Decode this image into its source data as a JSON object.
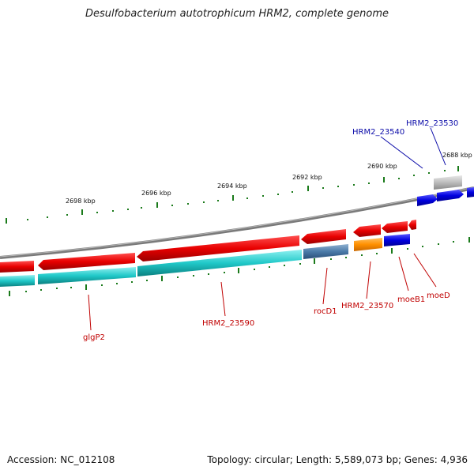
{
  "title": "Desulfobacterium autotrophicum HRM2, complete genome",
  "footer": {
    "accession": "Accession: NC_012108",
    "summary": "Topology: circular; Length: 5,589,073 bp; Genes: 4,936"
  },
  "colors": {
    "forward_strand": "#e80000",
    "reverse_strand": "#18c8c8",
    "backbone": "#808080",
    "ticks": "#1a7a1a",
    "gene_label_red": "#c00000",
    "gene_label_blue": "#0a0aa8"
  },
  "scale_labels": [
    "2698 kbp",
    "2696 kbp",
    "2694 kbp",
    "2692 kbp",
    "2690 kbp",
    "2688 kbp"
  ],
  "gene_labels_below": [
    "glgP2",
    "HRM2_23590",
    "rocD1",
    "HRM2_23570",
    "moeB1",
    "moeD"
  ],
  "gene_labels_above": [
    "HRM2_23540",
    "HRM2_23530"
  ]
}
